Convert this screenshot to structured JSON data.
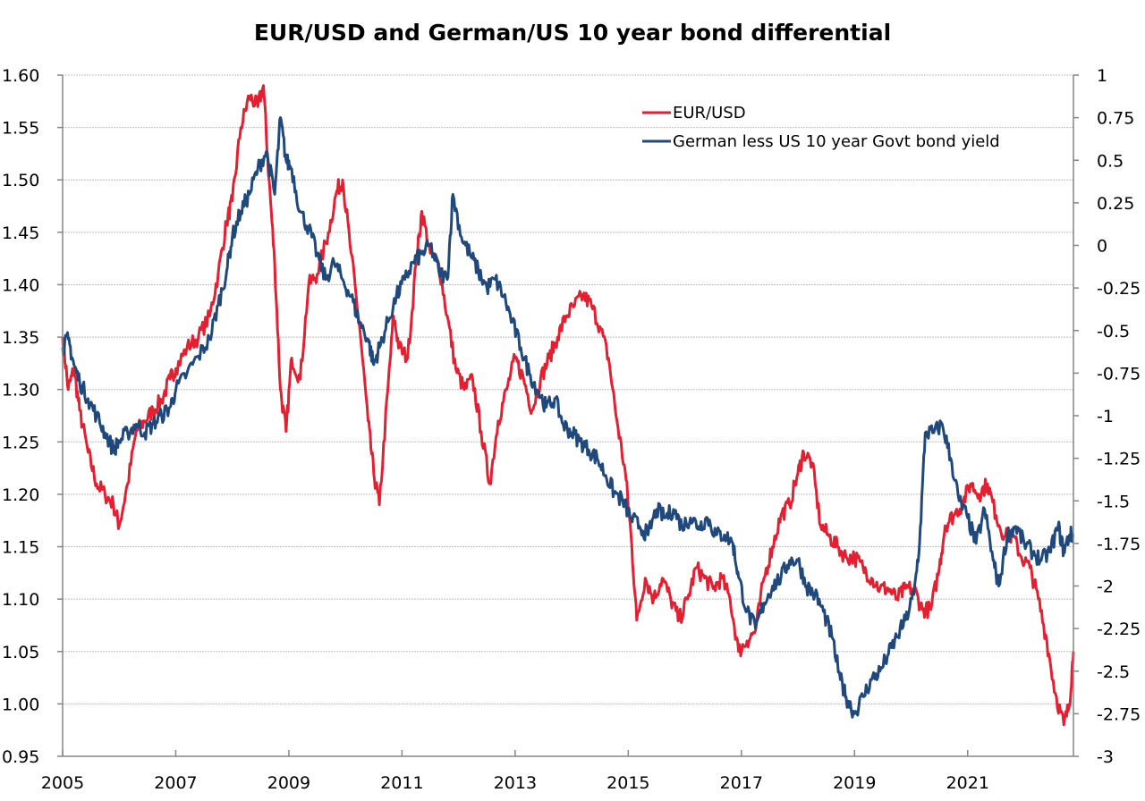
{
  "chart_data": {
    "type": "line",
    "title": "EUR/USD and German/US 10 year bond differential",
    "xlabel": "",
    "ylabel": "",
    "y2label": "",
    "x_range": [
      2005,
      2022.87
    ],
    "x_ticks": [
      "2005",
      "2007",
      "2009",
      "2011",
      "2013",
      "2015",
      "2017",
      "2019",
      "2021"
    ],
    "x_tick_values": [
      2005,
      2007,
      2009,
      2011,
      2013,
      2015,
      2017,
      2019,
      2021
    ],
    "ylim": [
      0.95,
      1.6
    ],
    "y_ticks": [
      "1.60",
      "1.55",
      "1.50",
      "1.45",
      "1.40",
      "1.35",
      "1.30",
      "1.25",
      "1.20",
      "1.15",
      "1.10",
      "1.05",
      "1.00",
      "0.95"
    ],
    "y2lim": [
      -3,
      1
    ],
    "y2_ticks": [
      "1",
      "0.75",
      "0.5",
      "0.25",
      "0",
      "-0.25",
      "-0.5",
      "-0.75",
      "-1",
      "-1.25",
      "-1.5",
      "-1.75",
      "-2",
      "-2.25",
      "-2.5",
      "-2.75",
      "-3"
    ],
    "grid": true,
    "legend_position": "top-right",
    "series": [
      {
        "name": "EUR/USD",
        "axis": "left",
        "color": "#e31f30",
        "x": [
          2005.0,
          2005.1,
          2005.2,
          2005.3,
          2005.45,
          2005.6,
          2005.75,
          2005.9,
          2006.0,
          2006.15,
          2006.3,
          2006.45,
          2006.6,
          2006.75,
          2006.9,
          2007.0,
          2007.2,
          2007.4,
          2007.6,
          2007.75,
          2007.9,
          2008.0,
          2008.15,
          2008.3,
          2008.45,
          2008.55,
          2008.65,
          2008.75,
          2008.85,
          2008.95,
          2009.05,
          2009.2,
          2009.35,
          2009.5,
          2009.7,
          2009.85,
          2009.95,
          2010.1,
          2010.25,
          2010.4,
          2010.5,
          2010.6,
          2010.75,
          2010.85,
          2010.95,
          2011.1,
          2011.25,
          2011.35,
          2011.5,
          2011.65,
          2011.8,
          2011.95,
          2012.1,
          2012.25,
          2012.4,
          2012.55,
          2012.7,
          2012.85,
          2013.0,
          2013.15,
          2013.3,
          2013.45,
          2013.6,
          2013.75,
          2013.9,
          2014.05,
          2014.2,
          2014.35,
          2014.5,
          2014.65,
          2014.8,
          2014.95,
          2015.05,
          2015.15,
          2015.3,
          2015.45,
          2015.6,
          2015.75,
          2015.9,
          2016.05,
          2016.2,
          2016.35,
          2016.5,
          2016.65,
          2016.8,
          2016.95,
          2017.1,
          2017.25,
          2017.4,
          2017.55,
          2017.7,
          2017.85,
          2018.0,
          2018.1,
          2018.25,
          2018.4,
          2018.55,
          2018.7,
          2018.85,
          2019.0,
          2019.15,
          2019.3,
          2019.45,
          2019.6,
          2019.75,
          2019.9,
          2020.05,
          2020.2,
          2020.35,
          2020.5,
          2020.6,
          2020.75,
          2020.9,
          2021.05,
          2021.2,
          2021.35,
          2021.5,
          2021.65,
          2021.8,
          2021.95,
          2022.1,
          2022.25,
          2022.4,
          2022.55,
          2022.7,
          2022.8,
          2022.87
        ],
        "values": [
          1.35,
          1.3,
          1.32,
          1.28,
          1.24,
          1.21,
          1.2,
          1.19,
          1.17,
          1.21,
          1.26,
          1.27,
          1.28,
          1.29,
          1.31,
          1.32,
          1.34,
          1.35,
          1.37,
          1.41,
          1.46,
          1.48,
          1.55,
          1.58,
          1.57,
          1.59,
          1.5,
          1.42,
          1.3,
          1.26,
          1.33,
          1.31,
          1.4,
          1.41,
          1.45,
          1.49,
          1.5,
          1.43,
          1.36,
          1.27,
          1.22,
          1.19,
          1.3,
          1.37,
          1.34,
          1.33,
          1.42,
          1.47,
          1.43,
          1.42,
          1.37,
          1.32,
          1.3,
          1.31,
          1.26,
          1.21,
          1.27,
          1.3,
          1.33,
          1.31,
          1.28,
          1.31,
          1.33,
          1.35,
          1.37,
          1.38,
          1.39,
          1.38,
          1.36,
          1.33,
          1.27,
          1.22,
          1.16,
          1.08,
          1.12,
          1.1,
          1.12,
          1.1,
          1.08,
          1.1,
          1.13,
          1.12,
          1.11,
          1.12,
          1.1,
          1.05,
          1.06,
          1.07,
          1.12,
          1.15,
          1.18,
          1.19,
          1.22,
          1.24,
          1.23,
          1.17,
          1.16,
          1.15,
          1.14,
          1.14,
          1.13,
          1.12,
          1.11,
          1.11,
          1.1,
          1.11,
          1.11,
          1.09,
          1.09,
          1.13,
          1.17,
          1.18,
          1.19,
          1.21,
          1.2,
          1.21,
          1.18,
          1.16,
          1.16,
          1.14,
          1.13,
          1.1,
          1.06,
          1.01,
          0.98,
          1.0,
          1.05
        ]
      },
      {
        "name": "German less US 10 year Govt bond yield",
        "axis": "right",
        "color": "#1f497d",
        "x": [
          2005.0,
          2005.1,
          2005.2,
          2005.3,
          2005.45,
          2005.6,
          2005.75,
          2005.9,
          2006.0,
          2006.15,
          2006.3,
          2006.45,
          2006.6,
          2006.75,
          2006.9,
          2007.0,
          2007.2,
          2007.4,
          2007.6,
          2007.75,
          2007.9,
          2008.0,
          2008.15,
          2008.3,
          2008.45,
          2008.6,
          2008.75,
          2008.85,
          2008.95,
          2009.05,
          2009.2,
          2009.35,
          2009.5,
          2009.65,
          2009.8,
          2009.95,
          2010.1,
          2010.25,
          2010.4,
          2010.5,
          2010.6,
          2010.75,
          2010.9,
          2011.05,
          2011.2,
          2011.35,
          2011.5,
          2011.65,
          2011.8,
          2011.9,
          2012.05,
          2012.2,
          2012.35,
          2012.5,
          2012.65,
          2012.8,
          2012.95,
          2013.1,
          2013.25,
          2013.4,
          2013.55,
          2013.7,
          2013.85,
          2014.0,
          2014.15,
          2014.3,
          2014.45,
          2014.6,
          2014.75,
          2014.9,
          2015.05,
          2015.2,
          2015.35,
          2015.5,
          2015.65,
          2015.8,
          2015.95,
          2016.1,
          2016.25,
          2016.4,
          2016.55,
          2016.7,
          2016.85,
          2016.95,
          2017.1,
          2017.25,
          2017.4,
          2017.55,
          2017.7,
          2017.85,
          2018.0,
          2018.15,
          2018.3,
          2018.45,
          2018.6,
          2018.75,
          2018.85,
          2019.0,
          2019.15,
          2019.3,
          2019.45,
          2019.6,
          2019.75,
          2019.9,
          2020.05,
          2020.15,
          2020.25,
          2020.4,
          2020.55,
          2020.7,
          2020.85,
          2021.0,
          2021.15,
          2021.3,
          2021.45,
          2021.55,
          2021.7,
          2021.85,
          2022.0,
          2022.15,
          2022.3,
          2022.45,
          2022.6,
          2022.7,
          2022.8,
          2022.87
        ],
        "values": [
          -0.6,
          -0.55,
          -0.7,
          -0.8,
          -0.9,
          -1.0,
          -1.1,
          -1.2,
          -1.15,
          -1.1,
          -1.05,
          -1.1,
          -1.05,
          -1.0,
          -0.95,
          -0.85,
          -0.75,
          -0.65,
          -0.55,
          -0.35,
          -0.15,
          0.05,
          0.2,
          0.3,
          0.45,
          0.55,
          0.3,
          0.75,
          0.5,
          0.45,
          0.2,
          0.1,
          -0.05,
          -0.2,
          -0.1,
          -0.2,
          -0.3,
          -0.45,
          -0.55,
          -0.7,
          -0.6,
          -0.45,
          -0.3,
          -0.2,
          -0.1,
          -0.05,
          0.0,
          -0.15,
          -0.2,
          0.3,
          0.05,
          -0.05,
          -0.15,
          -0.25,
          -0.2,
          -0.3,
          -0.45,
          -0.6,
          -0.75,
          -0.85,
          -0.95,
          -0.9,
          -1.05,
          -1.1,
          -1.15,
          -1.2,
          -1.25,
          -1.35,
          -1.45,
          -1.5,
          -1.6,
          -1.65,
          -1.7,
          -1.55,
          -1.6,
          -1.55,
          -1.65,
          -1.6,
          -1.65,
          -1.6,
          -1.7,
          -1.7,
          -1.75,
          -1.95,
          -2.15,
          -2.25,
          -2.1,
          -2.0,
          -1.95,
          -1.85,
          -1.85,
          -2.0,
          -2.05,
          -2.15,
          -2.3,
          -2.55,
          -2.65,
          -2.75,
          -2.65,
          -2.55,
          -2.5,
          -2.4,
          -2.3,
          -2.2,
          -2.05,
          -1.75,
          -1.1,
          -1.1,
          -1.05,
          -1.25,
          -1.5,
          -1.6,
          -1.75,
          -1.55,
          -1.85,
          -2.0,
          -1.7,
          -1.65,
          -1.75,
          -1.8,
          -1.85,
          -1.8,
          -1.65,
          -1.8,
          -1.7,
          -1.7
        ]
      }
    ]
  }
}
